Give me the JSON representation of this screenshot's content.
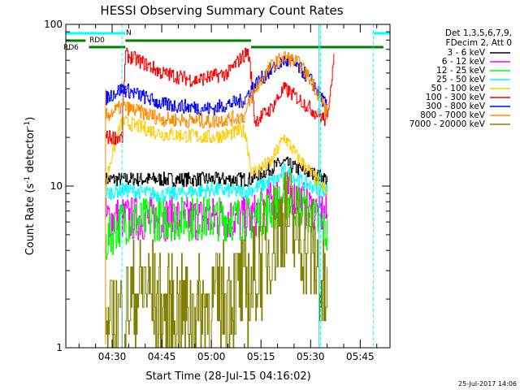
{
  "chart_data": {
    "type": "line",
    "title": "HESSI Observing Summary Count Rates",
    "xlabel": "Start Time (28-Jul-15 04:16:02)",
    "ylabel_main": "Count Rate (s",
    "ylabel_sup1": "-1",
    "ylabel_mid": " detector",
    "ylabel_sup2": "-1",
    "ylabel_end": ")",
    "y_scale": "log",
    "ylim": [
      1,
      100
    ],
    "xlim": [
      "04:16",
      "05:54"
    ],
    "x_ticks": [
      "04:30",
      "04:45",
      "05:00",
      "05:15",
      "05:30",
      "05:45"
    ],
    "y_ticks": [
      "1",
      "10",
      "100"
    ],
    "legend_header": [
      "Det 1,3,5,6,7,9,",
      "FDecim 2, Att 0"
    ],
    "footer_date": "25-Jul-2017 14:06",
    "flags": [
      {
        "label": "N",
        "color": "#00ffff",
        "ranges": [
          [
            "04:16",
            "04:34"
          ],
          [
            "05:49",
            "05:54"
          ]
        ]
      },
      {
        "label": "RD0",
        "color": "#008000",
        "ranges": [
          [
            "04:16",
            "04:22"
          ],
          [
            "04:34",
            "05:12"
          ]
        ]
      },
      {
        "label": "RD6",
        "color": "#008000",
        "ranges": [
          [
            "04:23",
            "04:34"
          ],
          [
            "05:12",
            "05:52"
          ]
        ]
      }
    ],
    "night_markers": [
      "04:33",
      "05:33",
      "05:49"
    ],
    "gaps": [
      [
        "04:16",
        "04:28"
      ],
      [
        "05:36",
        "05:54"
      ]
    ],
    "series": [
      {
        "name": "3 - 6 keV",
        "color": "#000000",
        "x": [
          "04:28",
          "04:33",
          "04:45",
          "05:00",
          "05:10",
          "05:12",
          "05:20",
          "05:22",
          "05:25",
          "05:30",
          "05:35"
        ],
        "y": [
          11,
          11,
          11,
          11,
          11,
          11,
          13.5,
          14,
          13,
          12,
          11
        ]
      },
      {
        "name": "6 - 12 keV",
        "color": "#ff00ff",
        "x": [
          "04:28",
          "04:33",
          "04:45",
          "05:00",
          "05:12",
          "05:20",
          "05:22",
          "05:26",
          "05:30",
          "05:35"
        ],
        "y": [
          6.3,
          6.3,
          6.3,
          6.3,
          6.3,
          8.5,
          9.5,
          8.5,
          7.2,
          6.5
        ]
      },
      {
        "name": "12 - 25 keV",
        "color": "#00ff00",
        "x": [
          "04:28",
          "04:33",
          "04:45",
          "05:00",
          "05:12",
          "05:20",
          "05:22",
          "05:26",
          "05:30",
          "05:35"
        ],
        "y": [
          4.5,
          6.0,
          6.3,
          6.3,
          6.3,
          7.5,
          8.5,
          7.5,
          6.5,
          5.0
        ]
      },
      {
        "name": "25 - 50 keV",
        "color": "#00ffff",
        "x": [
          "04:28",
          "04:33",
          "04:45",
          "05:00",
          "05:10",
          "05:12",
          "05:20",
          "05:22",
          "05:26",
          "05:30",
          "05:35"
        ],
        "y": [
          9,
          9.5,
          8.8,
          9.5,
          9.2,
          9.5,
          11,
          12.5,
          11,
          10,
          9.5
        ]
      },
      {
        "name": "50 - 100 keV",
        "color": "#ffcc00",
        "x": [
          "04:28",
          "04:33",
          "04:45",
          "05:00",
          "05:10",
          "05:12",
          "05:18",
          "05:22",
          "05:26",
          "05:30",
          "05:35"
        ],
        "y": [
          10,
          25,
          21,
          20,
          22,
          12,
          14,
          20,
          15,
          12,
          9
        ]
      },
      {
        "name": "100 - 300 keV",
        "color": "#ff0000",
        "x": [
          "04:28",
          "04:33",
          "04:34",
          "04:45",
          "04:55",
          "05:05",
          "05:11",
          "05:13",
          "05:18",
          "05:22",
          "05:26",
          "05:30",
          "05:35",
          "05:37"
        ],
        "y": [
          20,
          20,
          65,
          50,
          45,
          50,
          68,
          25,
          30,
          40,
          35,
          30,
          25,
          60
        ]
      },
      {
        "name": "300 - 800 keV",
        "color": "#0000ff",
        "x": [
          "04:28",
          "04:33",
          "04:45",
          "05:00",
          "05:10",
          "05:12",
          "05:18",
          "05:22",
          "05:26",
          "05:30",
          "05:35"
        ],
        "y": [
          35,
          40,
          32,
          30,
          34,
          40,
          52,
          60,
          55,
          45,
          30
        ]
      },
      {
        "name": "800 - 7000 keV",
        "color": "#ff8c00",
        "x": [
          "04:28",
          "04:33",
          "04:45",
          "05:00",
          "05:10",
          "05:12",
          "05:18",
          "05:22",
          "05:26",
          "05:30",
          "05:35"
        ],
        "y": [
          27,
          31,
          26,
          25,
          27,
          35,
          55,
          63,
          58,
          45,
          28
        ]
      },
      {
        "name": "7000 - 20000 keV",
        "color": "#808000",
        "x": [
          "04:28",
          "04:33",
          "04:40",
          "04:45",
          "05:00",
          "05:07",
          "05:12",
          "05:17",
          "05:22",
          "05:26",
          "05:30",
          "05:33",
          "05:35"
        ],
        "y": [
          1.2,
          1.6,
          2.5,
          1.6,
          1.8,
          2.2,
          2.4,
          4,
          6.5,
          5,
          4,
          2.5,
          1.8
        ]
      }
    ]
  }
}
